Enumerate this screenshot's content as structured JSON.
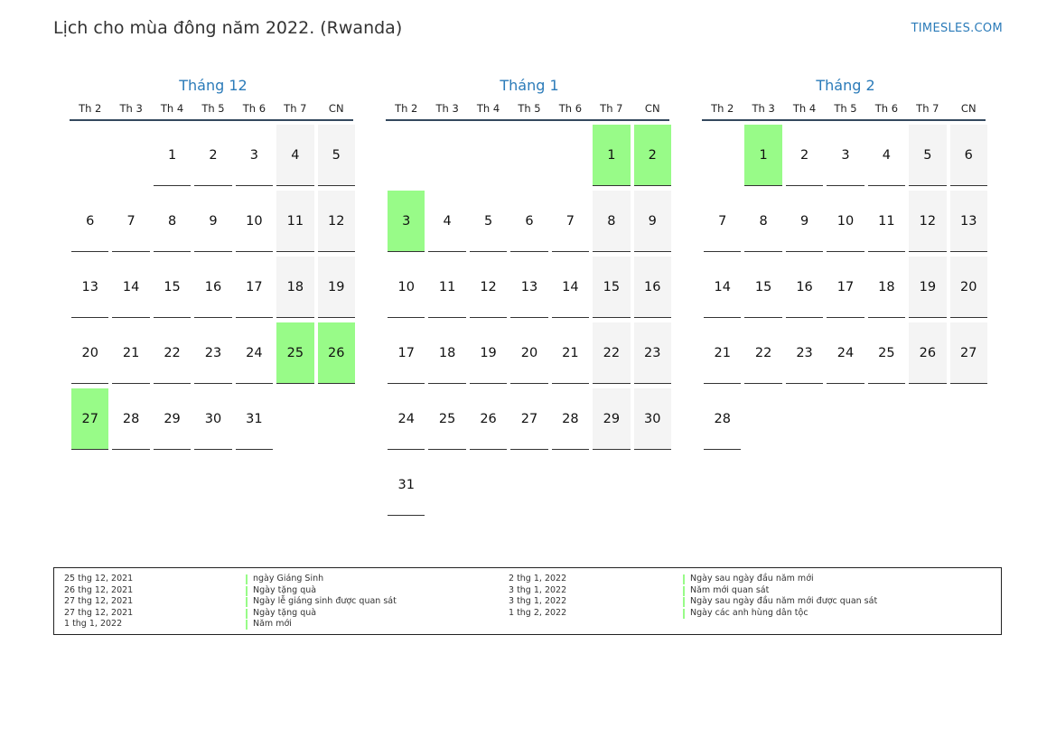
{
  "header": {
    "title": "Lịch cho mùa đông năm 2022. (Rwanda)",
    "site": "TIMESLES.COM"
  },
  "colors": {
    "accent": "#2b7bb9",
    "holiday": "#98fb88",
    "weekend": "#f4f4f4"
  },
  "weekdays": [
    "Th 2",
    "Th 3",
    "Th 4",
    "Th 5",
    "Th 6",
    "Th 7",
    "CN"
  ],
  "months": [
    {
      "title": "Tháng 12",
      "offset": 2,
      "days": 31,
      "holidays": [
        25,
        26,
        27
      ]
    },
    {
      "title": "Tháng 1",
      "offset": 5,
      "days": 31,
      "holidays": [
        1,
        2,
        3
      ]
    },
    {
      "title": "Tháng 2",
      "offset": 1,
      "days": 28,
      "holidays": [
        1
      ]
    }
  ],
  "legend": {
    "left": [
      {
        "date": "25 thg 12, 2021",
        "name": "ngày Giáng Sinh"
      },
      {
        "date": "26 thg 12, 2021",
        "name": "Ngày tặng quà"
      },
      {
        "date": "27 thg 12, 2021",
        "name": "Ngày lễ giáng sinh được quan sát"
      },
      {
        "date": "27 thg 12, 2021",
        "name": "Ngày tặng quà"
      },
      {
        "date": "1 thg 1, 2022",
        "name": "Năm mới"
      }
    ],
    "right": [
      {
        "date": "2 thg 1, 2022",
        "name": "Ngày sau ngày đầu năm mới"
      },
      {
        "date": "3 thg 1, 2022",
        "name": "Năm mới quan sát"
      },
      {
        "date": "3 thg 1, 2022",
        "name": "Ngày sau ngày đầu năm mới được quan sát"
      },
      {
        "date": "1 thg 2, 2022",
        "name": "Ngày các anh hùng dân tộc"
      }
    ]
  }
}
